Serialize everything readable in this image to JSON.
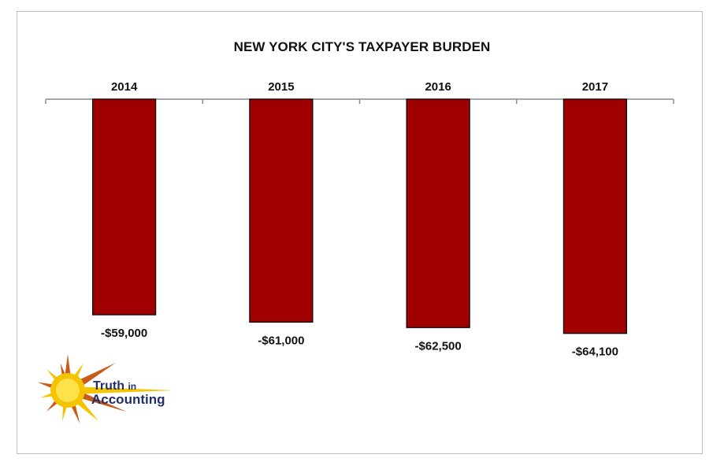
{
  "chart_data": {
    "type": "bar",
    "title": "NEW YORK CITY'S TAXPAYER BURDEN",
    "categories": [
      "2014",
      "2015",
      "2016",
      "2017"
    ],
    "values": [
      -59000,
      -61000,
      -62500,
      -64100
    ],
    "data_labels": [
      "-$59,000",
      "-$61,000",
      "-$62,500",
      "-$64,100"
    ],
    "xlabel": "",
    "ylabel": "",
    "ylim": [
      -70000,
      0
    ],
    "grid": false,
    "bar_color": "#a00000",
    "x_axis_position": "top"
  },
  "logo": {
    "word1": "Truth",
    "word2": "in",
    "word3": "Accounting",
    "text_color": "#1f2f6b",
    "sun_color": "#f5c400",
    "ray_color": "#c85a1a"
  }
}
